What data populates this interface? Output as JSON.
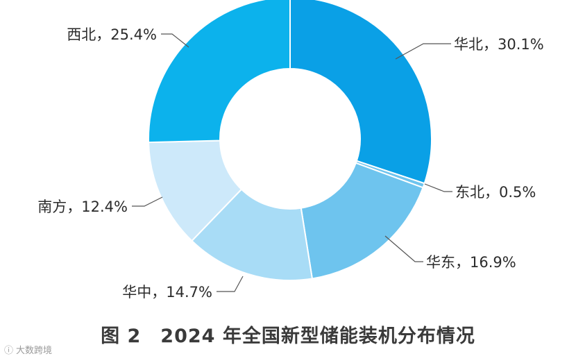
{
  "chart_data": {
    "type": "pie",
    "title": "图 2　2024 年全国新型储能装机分布情况",
    "categories": [
      "华北",
      "东北",
      "华东",
      "华中",
      "南方",
      "西北"
    ],
    "values": [
      30.1,
      0.5,
      16.9,
      14.7,
      12.4,
      25.4
    ],
    "unit": "%",
    "labels": [
      "华北，30.1%",
      "东北，0.5%",
      "华东，16.9%",
      "华中，14.7%",
      "南方，12.4%",
      "西北，25.4%"
    ],
    "colors": [
      "#0aa0e6",
      "#6ec4ee",
      "#6ec4ee",
      "#a8dcf6",
      "#cde9fa",
      "#0cb2ec"
    ],
    "donut": true
  },
  "caption": "图 2　2024 年全国新型储能装机分布情况",
  "watermark": {
    "text": "大数跨境",
    "icon": "watermark-logo-icon"
  }
}
